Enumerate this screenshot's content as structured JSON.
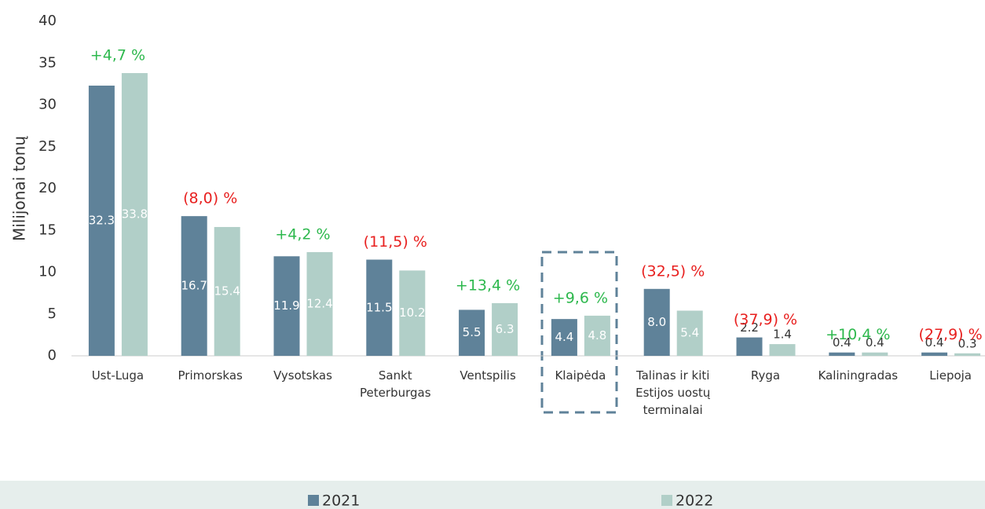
{
  "chart_data": {
    "type": "bar",
    "y_label": "Milijonai tonų",
    "categories": [
      "Ust-Luga",
      "Primorskas",
      "Vysotskas",
      "Sankt Peterburgas",
      "Ventspilis",
      "Klaipėda",
      "Talinas ir kiti Estijos uostų terminalai",
      "Ryga",
      "Kaliningradas",
      "Liepoja"
    ],
    "series": [
      {
        "name": "2021",
        "color": "#5f8299",
        "values": [
          32.3,
          16.7,
          11.9,
          11.5,
          5.5,
          4.4,
          8.0,
          2.2,
          0.4,
          0.4
        ],
        "value_labels": [
          "32.3",
          "16.7",
          "11.9",
          "11.5",
          "5.5",
          "4.4",
          "8.0",
          "2.2",
          "0.4",
          "0.4"
        ]
      },
      {
        "name": "2022",
        "color": "#b1cfc8",
        "values": [
          33.8,
          15.4,
          12.4,
          10.2,
          6.3,
          4.8,
          5.4,
          1.4,
          0.4,
          0.3
        ],
        "value_labels": [
          "33.8",
          "15.4",
          "12.4",
          "10.2",
          "6.3",
          "4.8",
          "5.4",
          "1.4",
          "0.4",
          "0.3"
        ]
      }
    ],
    "annotations": [
      "+4,7 %",
      "(8,0) %",
      "+4,2 %",
      "(11,5) %",
      "+13,4 %",
      "+9,6 %",
      "(32,5) %",
      "(37,9) %",
      "+10,4 %",
      "(27,9) %"
    ],
    "annotation_colors": [
      "#2db84d",
      "#e8201f",
      "#2db84d",
      "#e8201f",
      "#2db84d",
      "#2db84d",
      "#e8201f",
      "#e8201f",
      "#2db84d",
      "#e8201f"
    ],
    "ylim": [
      0,
      40
    ],
    "yticks": [
      0,
      5,
      10,
      15,
      20,
      25,
      30,
      35,
      40
    ],
    "grid": false,
    "legend": "bottom"
  }
}
